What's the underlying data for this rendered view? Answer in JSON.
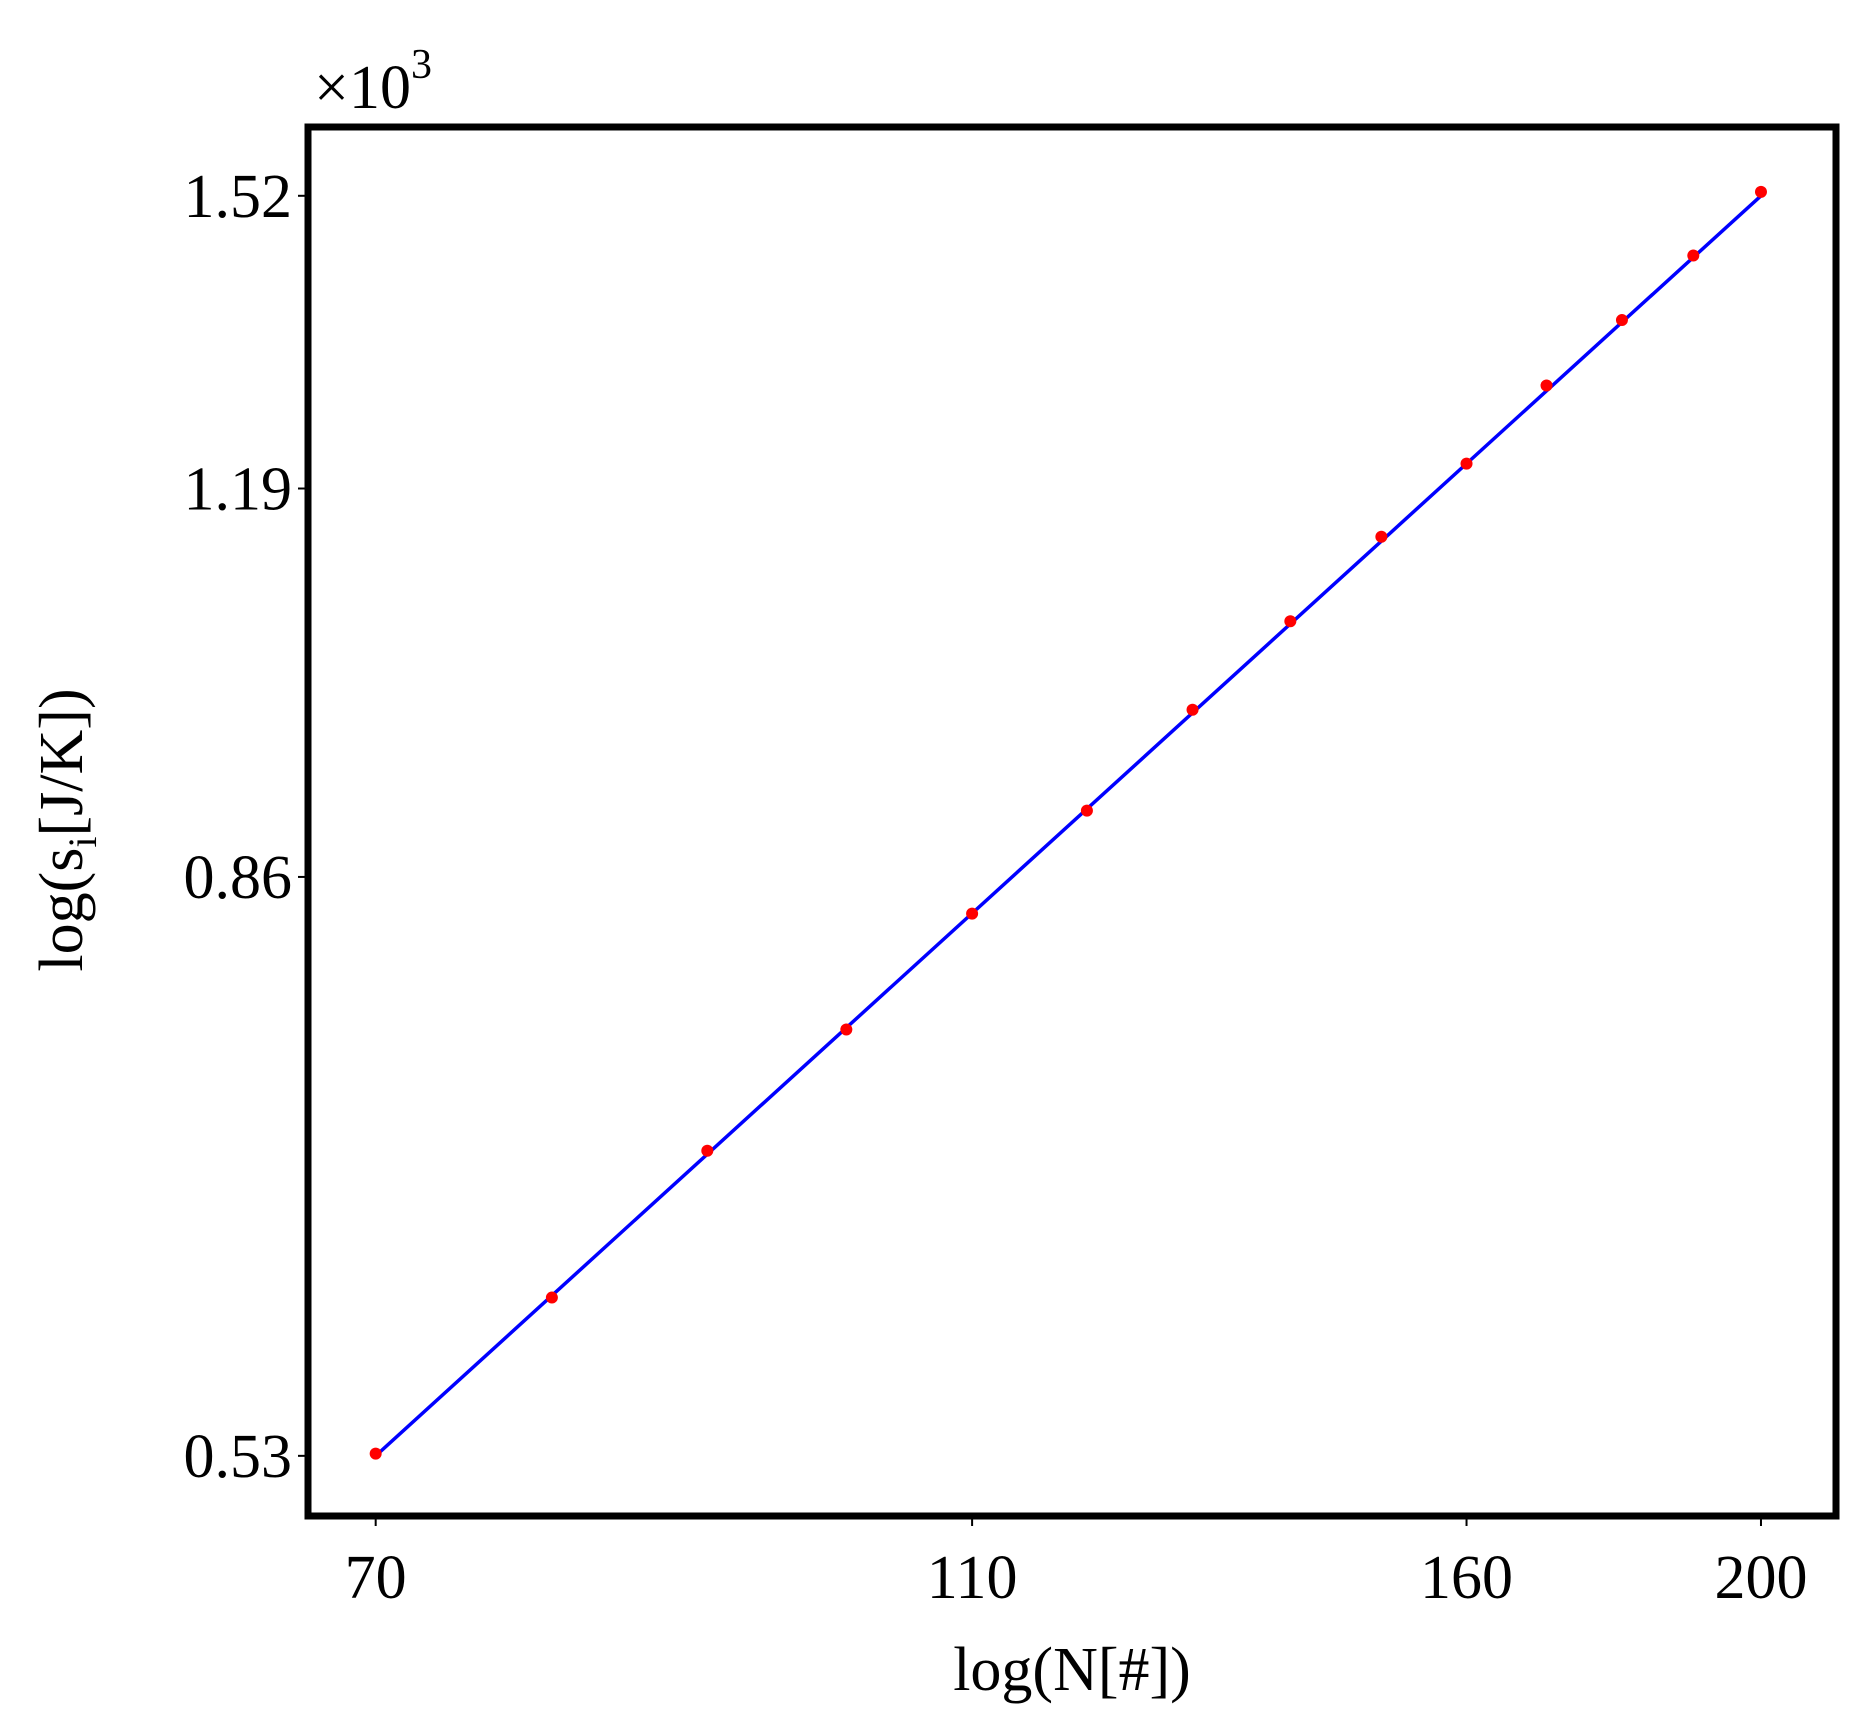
{
  "chart_data": {
    "type": "scatter",
    "xlabel": "log(N[#])",
    "ylabel": [
      "log(s",
      "i",
      "[J/K])"
    ],
    "y_multiplier": [
      "×10",
      "3"
    ],
    "xlog": true,
    "ylog": true,
    "grid": false,
    "xlim": [
      66.5,
      211.7
    ],
    "ylim": [
      0.504,
      1.61
    ],
    "xticks": [
      70,
      110,
      160,
      200
    ],
    "yticks": [
      0.53,
      0.86,
      1.19,
      1.52
    ],
    "series": [
      {
        "mode": "markers",
        "color": "#ff0000",
        "x": [
          70,
          80,
          90,
          100,
          110,
          120,
          130,
          140,
          150,
          160,
          170,
          180,
          190,
          200
        ],
        "values": [
          0.531,
          0.605,
          0.684,
          0.757,
          0.834,
          0.909,
          0.989,
          1.065,
          1.143,
          1.215,
          1.297,
          1.37,
          1.446,
          1.525
        ]
      },
      {
        "mode": "line",
        "color": "#0000ff",
        "x": [
          70,
          200
        ],
        "values": [
          0.53,
          1.52
        ]
      }
    ]
  }
}
